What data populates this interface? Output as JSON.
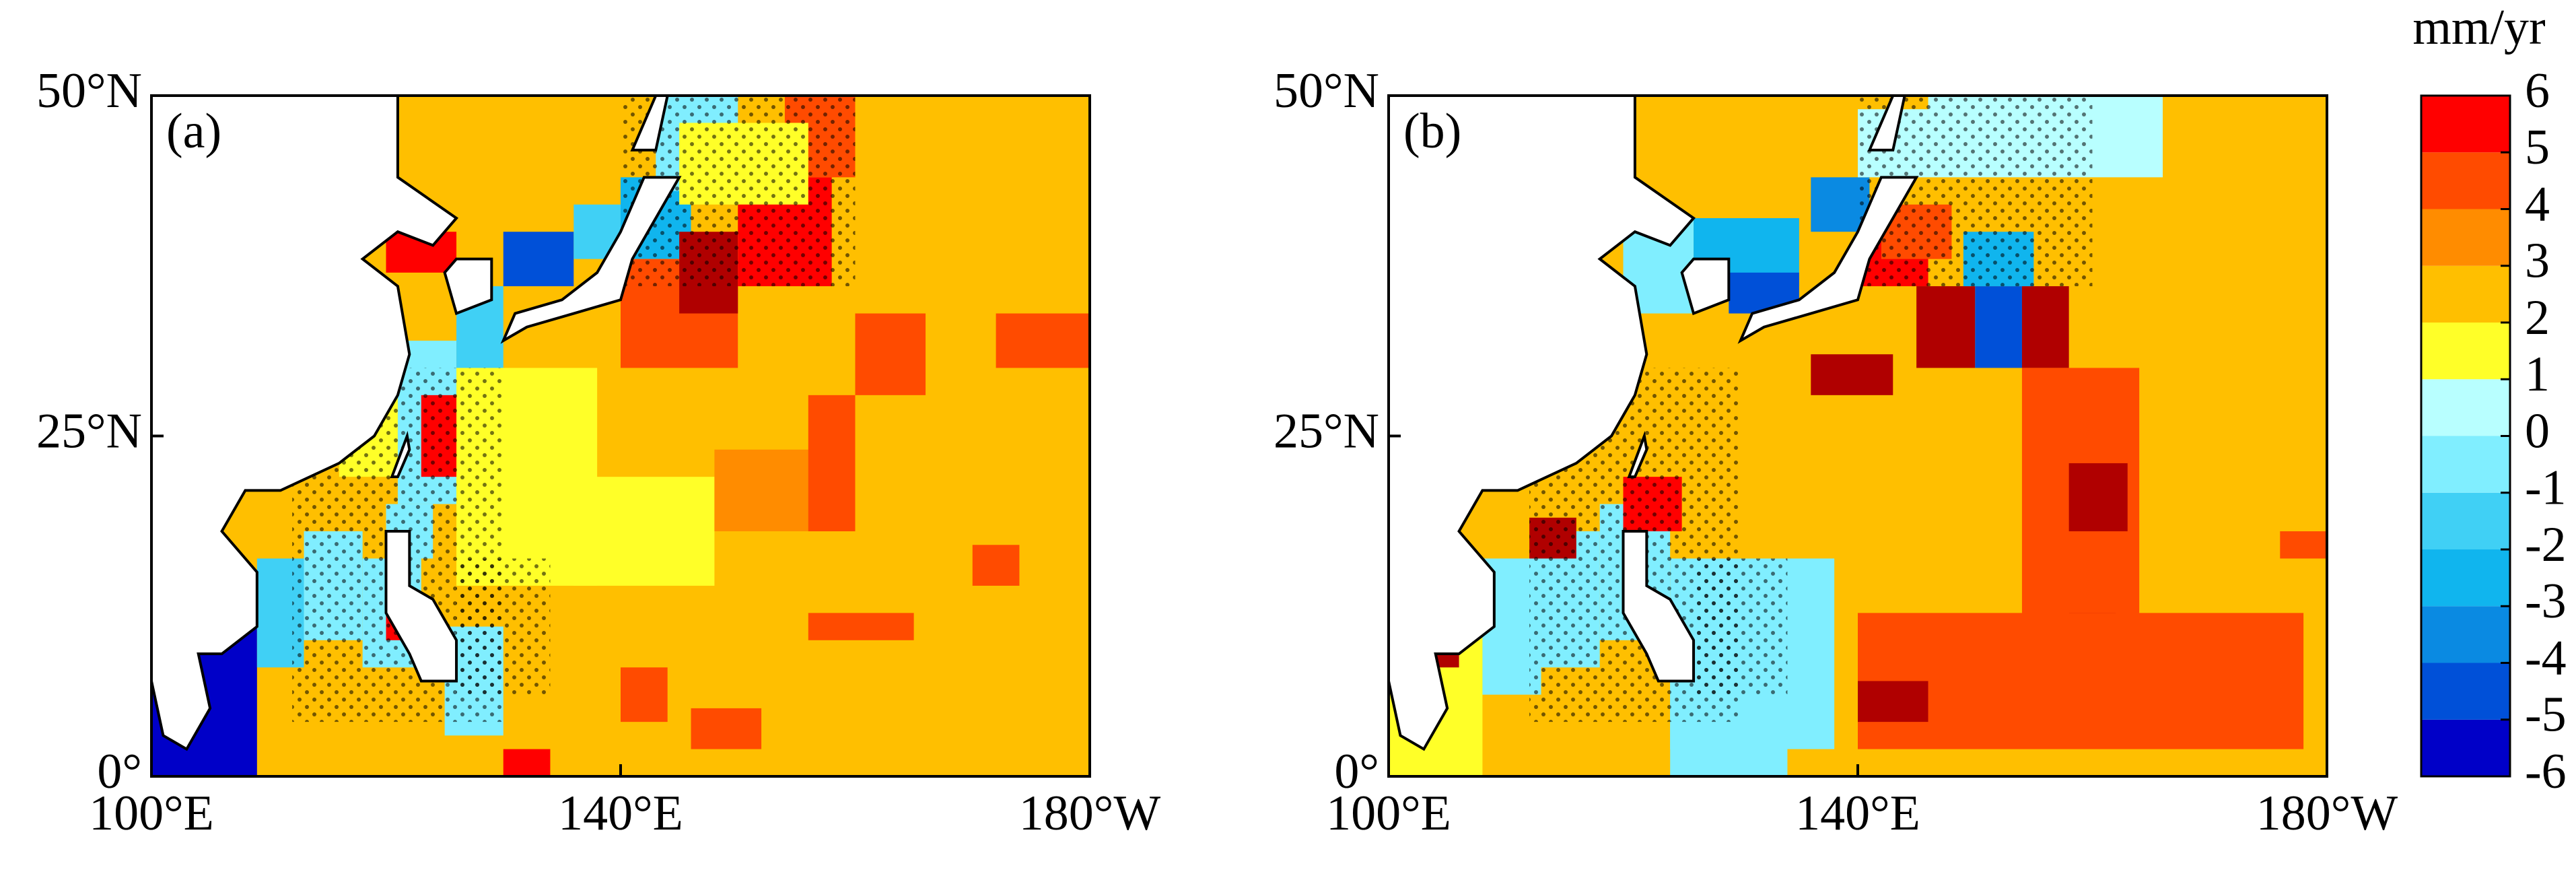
{
  "panels": [
    {
      "label": "(a)"
    },
    {
      "label": "(b)"
    }
  ],
  "lon": {
    "lim": [
      100,
      180
    ],
    "ticks": [
      {
        "value": 100,
        "label": "100°E"
      },
      {
        "value": 140,
        "label": "140°E"
      },
      {
        "value": 180,
        "label": "180°W"
      }
    ]
  },
  "lat": {
    "lim": [
      0,
      50
    ],
    "ticks": [
      {
        "value": 0,
        "label": "0°"
      },
      {
        "value": 25,
        "label": "25°N"
      },
      {
        "value": 50,
        "label": "50°N"
      }
    ]
  },
  "colorbar": {
    "unit": "mm/yr",
    "lim": [
      -6,
      6
    ],
    "ticks": [
      -6,
      -5,
      -4,
      -3,
      -2,
      -1,
      0,
      1,
      2,
      3,
      4,
      5,
      6
    ],
    "colors": [
      "#0000c8",
      "#0050d8",
      "#0a8ae2",
      "#10b5ee",
      "#40d0f5",
      "#80eeff",
      "#b8ffff",
      "#ffff28",
      "#ffbf00",
      "#ff8c00",
      "#ff4b00",
      "#ff0000",
      "#b00000"
    ]
  }
}
